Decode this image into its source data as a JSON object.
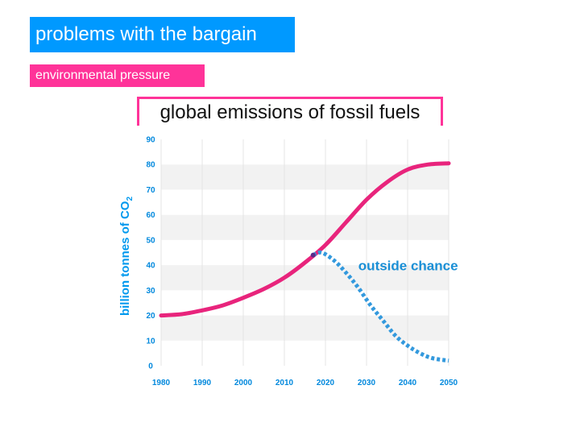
{
  "slide": {
    "title": "problems with the bargain",
    "subtitle": "environmental pressure"
  },
  "colors": {
    "title_bg": "#0099ff",
    "subtitle_bg": "#ff3399",
    "business_as_usual": "#e8247c",
    "outside_chance": "#3399dd",
    "axis_text": "#0088dd"
  },
  "chart_data": {
    "type": "line",
    "title": "global emissions of fossil fuels",
    "ylabel": "billion tonnes of CO",
    "ylabel_subscript": "2",
    "xlabel": "",
    "xlim": [
      1980,
      2050
    ],
    "ylim": [
      0,
      90
    ],
    "xticks": [
      1980,
      1990,
      2000,
      2010,
      2020,
      2030,
      2040,
      2050
    ],
    "yticks": [
      0,
      10,
      20,
      30,
      40,
      50,
      60,
      70,
      80,
      90
    ],
    "grid": true,
    "series": [
      {
        "x": [
          1980,
          1985,
          1990,
          1995,
          2000,
          2005,
          2010,
          2015,
          2020,
          2025,
          2030,
          2035,
          2040,
          2045,
          2050
        ],
        "y": [
          20,
          20.5,
          22,
          24,
          27,
          30.5,
          35,
          41,
          48,
          57,
          66,
          73,
          78,
          80,
          80.5
        ]
      },
      {
        "name": "outside chance",
        "x": [
          2017,
          2019,
          2022,
          2025,
          2028,
          2031,
          2034,
          2037,
          2040,
          2043,
          2046,
          2050
        ],
        "y": [
          44,
          45,
          42,
          37,
          31,
          24,
          18,
          12,
          8,
          5,
          3,
          2
        ]
      }
    ],
    "annotations": [
      {
        "text": "outside chance",
        "x": 2028,
        "y": 38
      }
    ]
  }
}
